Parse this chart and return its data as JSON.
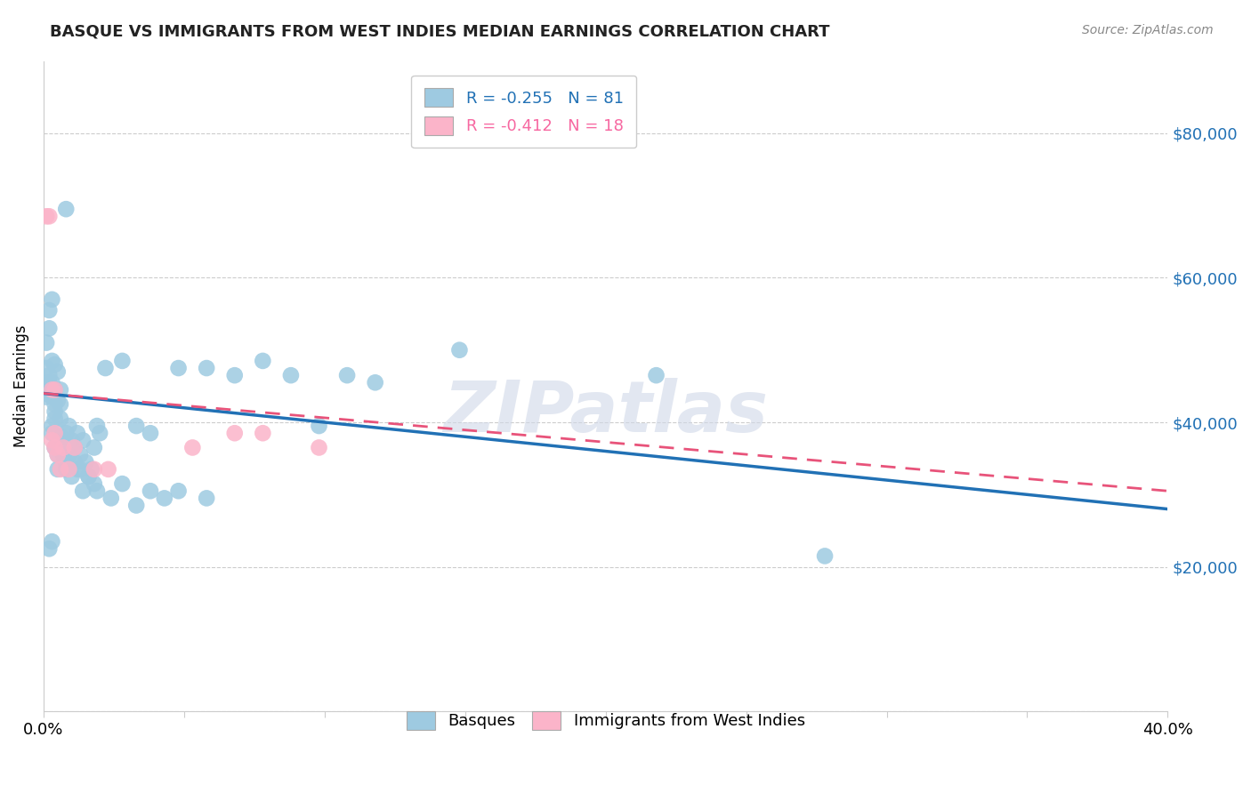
{
  "title": "BASQUE VS IMMIGRANTS FROM WEST INDIES MEDIAN EARNINGS CORRELATION CHART",
  "source": "Source: ZipAtlas.com",
  "ylabel": "Median Earnings",
  "y_ticks": [
    0,
    20000,
    40000,
    60000,
    80000
  ],
  "y_tick_labels": [
    "",
    "$20,000",
    "$40,000",
    "$60,000",
    "$80,000"
  ],
  "x_ticks": [
    0.0,
    0.05,
    0.1,
    0.15,
    0.2,
    0.25,
    0.3,
    0.35,
    0.4
  ],
  "legend_blue_label": "R = -0.255   N = 81",
  "legend_pink_label": "R = -0.412   N = 18",
  "watermark": "ZIPatlas",
  "blue_color": "#9ecae1",
  "pink_color": "#fbb4c9",
  "blue_line_color": "#2171b5",
  "pink_line_color": "#e8537a",
  "blue_scatter": [
    [
      0.001,
      44000
    ],
    [
      0.002,
      44500
    ],
    [
      0.001,
      43500
    ],
    [
      0.002,
      55500
    ],
    [
      0.003,
      57000
    ],
    [
      0.001,
      47500
    ],
    [
      0.002,
      46500
    ],
    [
      0.003,
      48500
    ],
    [
      0.001,
      51000
    ],
    [
      0.002,
      53000
    ],
    [
      0.003,
      43500
    ],
    [
      0.004,
      42500
    ],
    [
      0.003,
      45500
    ],
    [
      0.004,
      41500
    ],
    [
      0.003,
      38500
    ],
    [
      0.004,
      40500
    ],
    [
      0.005,
      43000
    ],
    [
      0.003,
      39500
    ],
    [
      0.004,
      48000
    ],
    [
      0.005,
      47000
    ],
    [
      0.006,
      44500
    ],
    [
      0.004,
      36500
    ],
    [
      0.005,
      35500
    ],
    [
      0.006,
      38000
    ],
    [
      0.006,
      40500
    ],
    [
      0.005,
      33500
    ],
    [
      0.006,
      42500
    ],
    [
      0.007,
      37500
    ],
    [
      0.007,
      35500
    ],
    [
      0.008,
      38500
    ],
    [
      0.007,
      36500
    ],
    [
      0.008,
      34500
    ],
    [
      0.009,
      39500
    ],
    [
      0.01,
      37500
    ],
    [
      0.008,
      33500
    ],
    [
      0.009,
      35500
    ],
    [
      0.01,
      32500
    ],
    [
      0.011,
      34500
    ],
    [
      0.012,
      33500
    ],
    [
      0.011,
      36500
    ],
    [
      0.012,
      38500
    ],
    [
      0.013,
      35500
    ],
    [
      0.014,
      37500
    ],
    [
      0.013,
      33500
    ],
    [
      0.015,
      34500
    ],
    [
      0.016,
      32500
    ],
    [
      0.014,
      30500
    ],
    [
      0.017,
      33500
    ],
    [
      0.018,
      31500
    ],
    [
      0.016,
      32500
    ],
    [
      0.019,
      39500
    ],
    [
      0.02,
      38500
    ],
    [
      0.018,
      36500
    ],
    [
      0.022,
      47500
    ],
    [
      0.028,
      48500
    ],
    [
      0.033,
      39500
    ],
    [
      0.038,
      38500
    ],
    [
      0.048,
      47500
    ],
    [
      0.058,
      47500
    ],
    [
      0.068,
      46500
    ],
    [
      0.078,
      48500
    ],
    [
      0.088,
      46500
    ],
    [
      0.098,
      39500
    ],
    [
      0.108,
      46500
    ],
    [
      0.118,
      45500
    ],
    [
      0.019,
      30500
    ],
    [
      0.024,
      29500
    ],
    [
      0.028,
      31500
    ],
    [
      0.033,
      28500
    ],
    [
      0.038,
      30500
    ],
    [
      0.043,
      29500
    ],
    [
      0.048,
      30500
    ],
    [
      0.058,
      29500
    ],
    [
      0.148,
      50000
    ],
    [
      0.218,
      46500
    ],
    [
      0.278,
      21500
    ],
    [
      0.008,
      69500
    ],
    [
      0.002,
      45500
    ],
    [
      0.004,
      44500
    ],
    [
      0.003,
      23500
    ],
    [
      0.002,
      22500
    ]
  ],
  "pink_scatter": [
    [
      0.001,
      68500
    ],
    [
      0.002,
      68500
    ],
    [
      0.003,
      44500
    ],
    [
      0.004,
      44500
    ],
    [
      0.004,
      38500
    ],
    [
      0.003,
      37500
    ],
    [
      0.005,
      35500
    ],
    [
      0.006,
      33500
    ],
    [
      0.007,
      36500
    ],
    [
      0.004,
      36500
    ],
    [
      0.009,
      33500
    ],
    [
      0.011,
      36500
    ],
    [
      0.068,
      38500
    ],
    [
      0.078,
      38500
    ],
    [
      0.098,
      36500
    ],
    [
      0.018,
      33500
    ],
    [
      0.023,
      33500
    ],
    [
      0.053,
      36500
    ]
  ],
  "blue_line_x": [
    0.0,
    0.4
  ],
  "blue_line_y": [
    44000,
    28000
  ],
  "pink_line_x": [
    0.0,
    0.4
  ],
  "pink_line_y": [
    44000,
    30500
  ],
  "xlim": [
    0.0,
    0.4
  ],
  "ylim": [
    0,
    90000
  ],
  "ylim_plot": [
    0,
    90000
  ]
}
